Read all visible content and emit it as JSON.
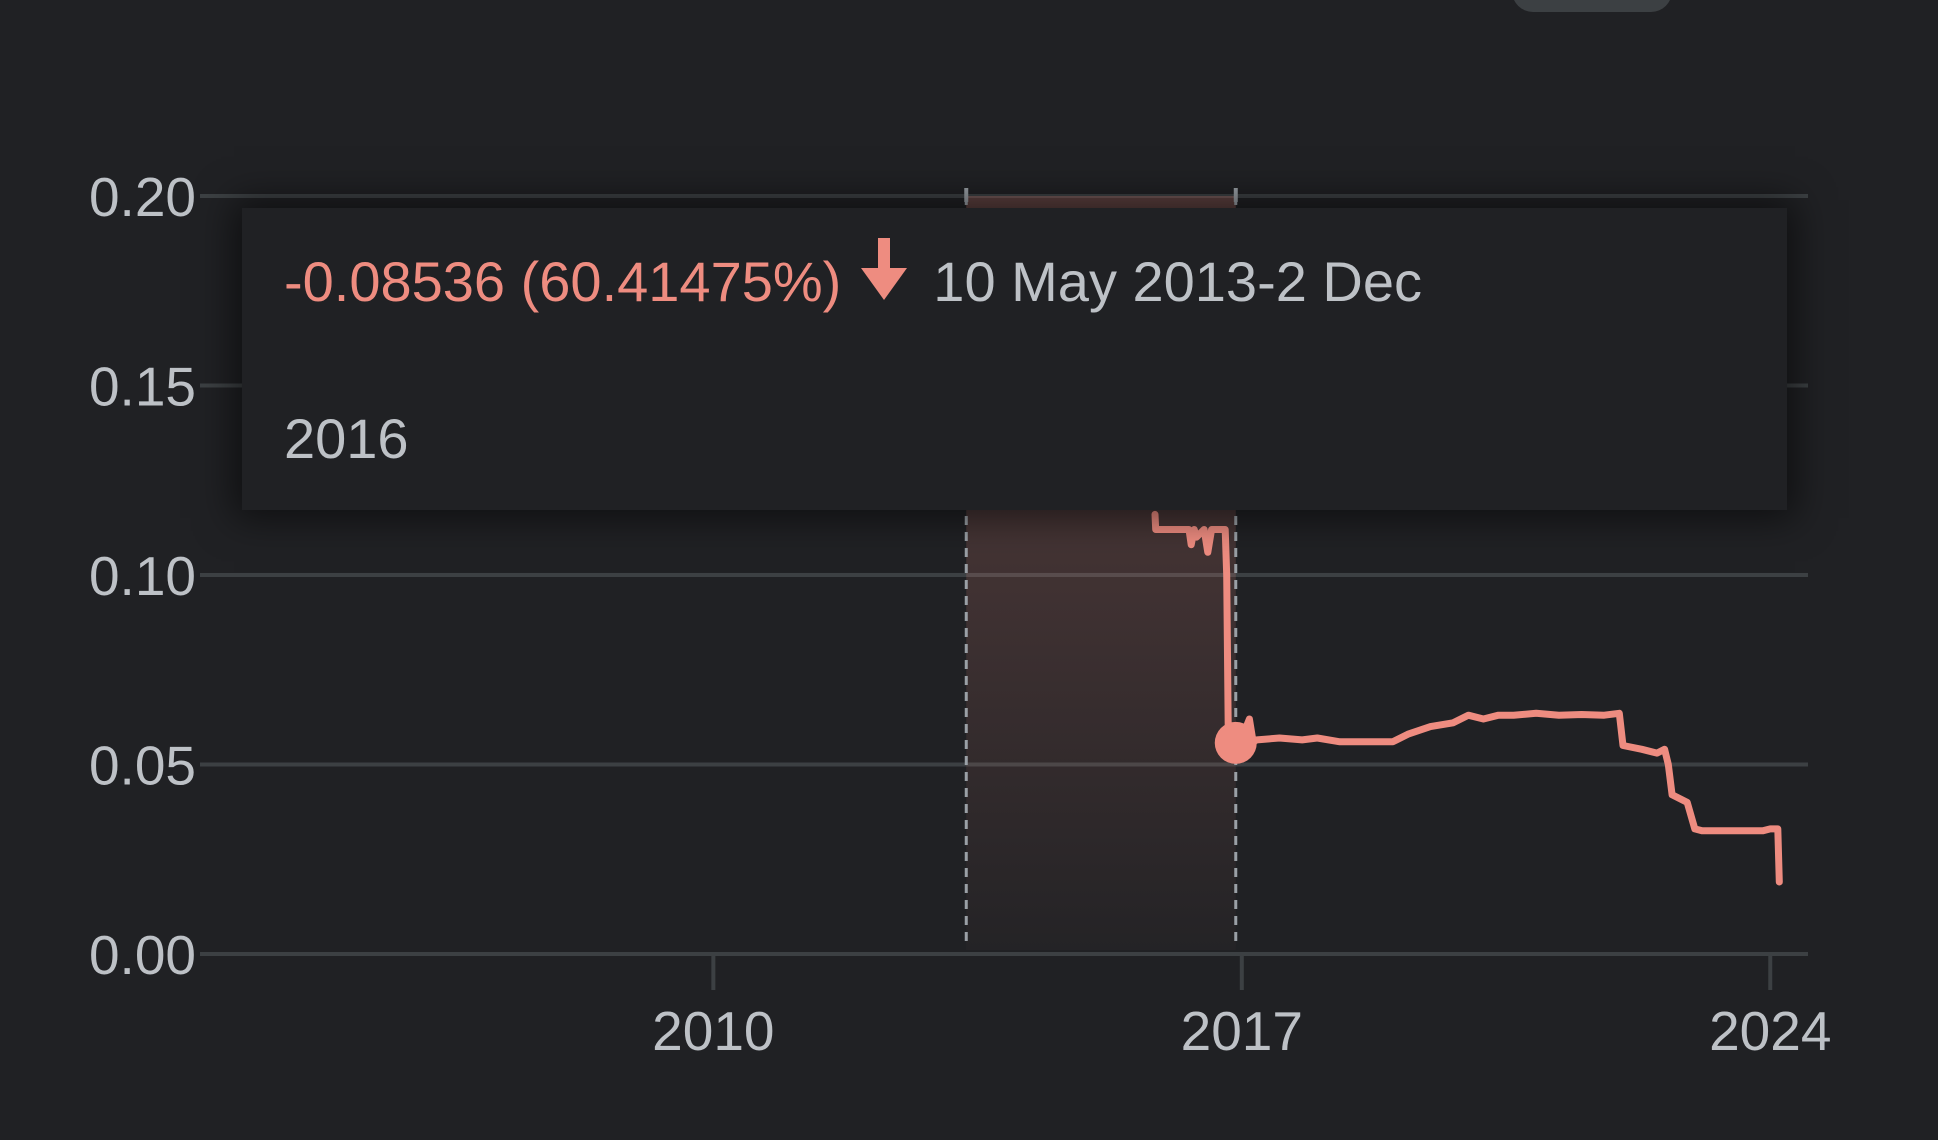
{
  "colors": {
    "background": "#202124",
    "series": "#ee8c80",
    "grid": "#3c4043",
    "text": "#bdc1c6"
  },
  "tooltip": {
    "change": "-0.08536 (60.41475%)",
    "direction_icon": "arrow-down-icon",
    "range_line1": "10 May 2013-2 Dec",
    "range_line2": "2016"
  },
  "chart_data": {
    "type": "line",
    "title": "",
    "xlabel": "",
    "ylabel": "",
    "y_ticks": [
      "0.00",
      "0.05",
      "0.10",
      "0.15",
      "0.20"
    ],
    "ylim": [
      0,
      0.2
    ],
    "x_ticks": [
      "2010",
      "2017",
      "2024"
    ],
    "x_tick_values": [
      2010,
      2017,
      2024
    ],
    "xlim": [
      2003.2,
      2024.5
    ],
    "grid": true,
    "highlight_range": {
      "start": 2013.35,
      "end": 2016.92
    },
    "selected_point": {
      "x": 2016.92,
      "y": 0.0557
    },
    "series": [
      {
        "values_x": [
          2015.85,
          2015.86,
          2016.3,
          2016.33,
          2016.37,
          2016.4,
          2016.5,
          2016.55,
          2016.6,
          2016.78,
          2016.8,
          2016.82,
          2016.84,
          2016.86,
          2016.9,
          2016.92,
          2017.0,
          2017.1,
          2017.15,
          2017.2,
          2017.5,
          2017.8,
          2018.0,
          2018.3,
          2018.6,
          2018.8,
          2019.0,
          2019.2,
          2019.5,
          2019.8,
          2020.0,
          2020.2,
          2020.4,
          2020.6,
          2020.9,
          2021.2,
          2021.5,
          2021.8,
          2022.0,
          2022.05,
          2022.3,
          2022.5,
          2022.6,
          2022.65,
          2022.7,
          2022.9,
          2023.0,
          2023.1,
          2023.3,
          2023.6,
          2023.9,
          2024.0,
          2024.05,
          2024.1,
          2024.12
        ],
        "values_y": [
          0.116,
          0.112,
          0.112,
          0.108,
          0.112,
          0.11,
          0.112,
          0.106,
          0.112,
          0.112,
          0.1,
          0.06,
          0.058,
          0.058,
          0.0557,
          0.0557,
          0.057,
          0.062,
          0.056,
          0.0565,
          0.057,
          0.0565,
          0.057,
          0.056,
          0.056,
          0.056,
          0.056,
          0.058,
          0.06,
          0.061,
          0.063,
          0.062,
          0.063,
          0.063,
          0.0635,
          0.063,
          0.0632,
          0.063,
          0.0635,
          0.055,
          0.054,
          0.053,
          0.054,
          0.05,
          0.042,
          0.04,
          0.033,
          0.0325,
          0.0325,
          0.0325,
          0.0325,
          0.033,
          0.033,
          0.033,
          0.019
        ]
      }
    ]
  }
}
